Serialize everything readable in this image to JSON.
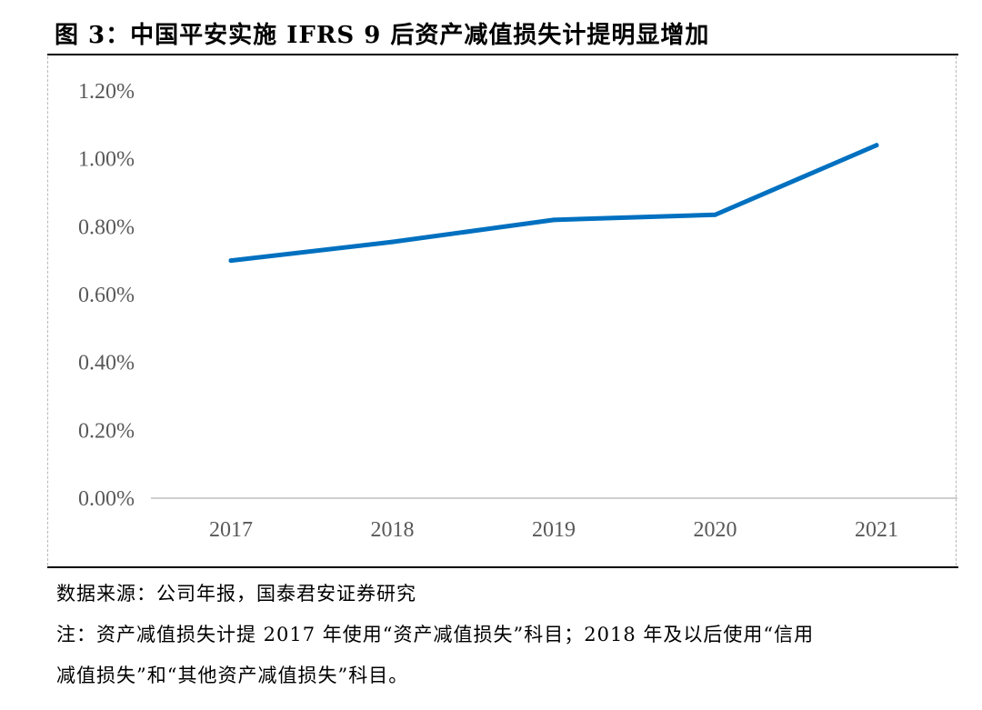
{
  "figure": {
    "title": "图 3：中国平安实施 IFRS 9 后资产减值损失计提明显增加"
  },
  "chart_data": {
    "type": "line",
    "categories": [
      "2017",
      "2018",
      "2019",
      "2020",
      "2021"
    ],
    "series": [
      {
        "values": [
          0.7,
          0.755,
          0.82,
          0.835,
          1.04
        ]
      }
    ],
    "y_ticks": [
      "0.00%",
      "0.20%",
      "0.40%",
      "0.60%",
      "0.80%",
      "1.00%",
      "1.20%"
    ],
    "ylim": [
      0,
      1.2
    ],
    "grid": false,
    "legend": "none",
    "line_color": "#0070C0"
  },
  "footer": {
    "source": "数据来源：公司年报，国泰君安证券研究",
    "note_line1": "注：资产减值损失计提 2017 年使用“资产减值损失”科目；2018 年及以后使用“信用",
    "note_line2": "减值损失”和“其他资产减值损失”科目。"
  }
}
